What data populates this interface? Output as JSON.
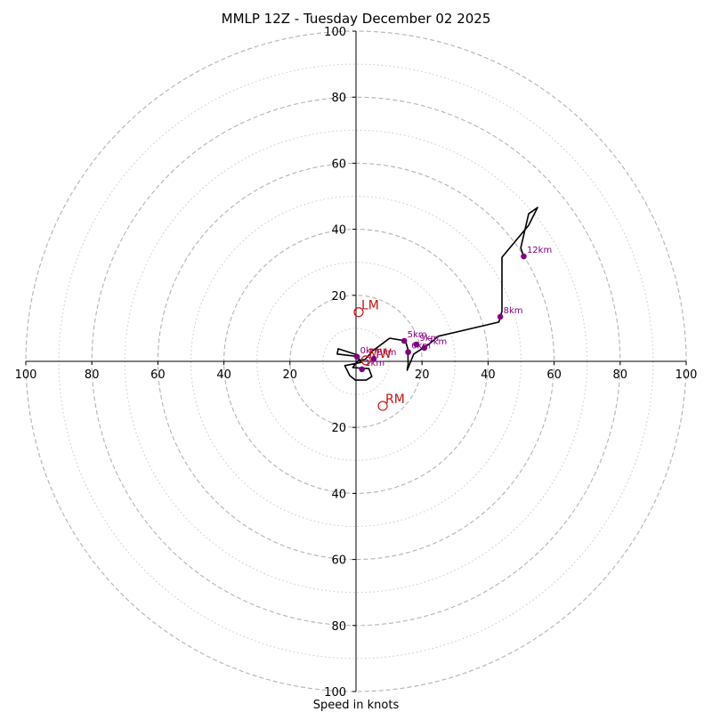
{
  "chart_data": {
    "type": "hodograph",
    "title": "MMLP 12Z - Tuesday December 02 2025",
    "xlabel": "Speed in knots",
    "max_speed": 100,
    "ring_speeds_major": [
      20,
      40,
      60,
      80,
      100
    ],
    "ring_speeds_minor": [
      10,
      30,
      50,
      70,
      90
    ],
    "horizontal_tick_labels": [
      "100",
      "80",
      "60",
      "40",
      "20",
      "20",
      "40",
      "60",
      "80",
      "100"
    ],
    "horizontal_tick_values": [
      -100,
      -80,
      -60,
      -40,
      -20,
      20,
      40,
      60,
      80,
      100
    ],
    "vertical_tick_labels": [
      "100",
      "80",
      "60",
      "40",
      "20",
      "20",
      "40",
      "60",
      "80",
      "100"
    ],
    "vertical_tick_values": [
      100,
      80,
      60,
      40,
      20,
      -20,
      -40,
      -60,
      -80,
      -100
    ],
    "hodograph_trace": [
      [
        0.6,
        1.9
      ],
      [
        -5.4,
        3.8
      ],
      [
        -5.7,
        2.2
      ],
      [
        0.3,
        1.5
      ],
      [
        1.7,
        -0.3
      ],
      [
        -3.4,
        -1.3
      ],
      [
        -1.9,
        -4.3
      ],
      [
        -0.2,
        -5.7
      ],
      [
        3.1,
        -5.7
      ],
      [
        4.8,
        -4.6
      ],
      [
        3.9,
        -2.2
      ],
      [
        -1.0,
        -1.9
      ],
      [
        0.7,
        0.3
      ],
      [
        2.7,
        0.5
      ],
      [
        5.1,
        3.2
      ],
      [
        10.2,
        7.0
      ],
      [
        15.0,
        6.2
      ],
      [
        15.7,
        3.8
      ],
      [
        15.8,
        -0.8
      ],
      [
        15.5,
        -2.7
      ],
      [
        17.5,
        2.2
      ],
      [
        22.0,
        5.1
      ],
      [
        24.9,
        7.6
      ],
      [
        43.3,
        11.9
      ],
      [
        44.2,
        15.2
      ],
      [
        44.2,
        31.5
      ],
      [
        52.3,
        41.2
      ],
      [
        55.0,
        46.6
      ],
      [
        52.3,
        44.7
      ],
      [
        49.9,
        34.3
      ],
      [
        50.8,
        31.8
      ]
    ],
    "height_markers": [
      {
        "label": "0km",
        "u": 0.3,
        "v": 1.4
      },
      {
        "label": "1km",
        "u": 1.8,
        "v": -2.4
      },
      {
        "label": "3km",
        "u": 5.4,
        "v": 0.8
      },
      {
        "label": "5km",
        "u": 14.6,
        "v": 6.2
      },
      {
        "label": "6km",
        "u": 15.8,
        "v": 2.8
      },
      {
        "label": "7km",
        "u": 20.7,
        "v": 4.1
      },
      {
        "label": "8km",
        "u": 43.7,
        "v": 13.5
      },
      {
        "label": "9km",
        "u": 18.3,
        "v": 5.1
      },
      {
        "label": "12km",
        "u": 50.8,
        "v": 31.8
      }
    ],
    "storm_motions": [
      {
        "label": "LM",
        "u": 0.8,
        "v": 14.9
      },
      {
        "label": "RM",
        "u": 8.1,
        "v": -13.5
      },
      {
        "label": "MW",
        "u": 3.0,
        "v": 0.3
      }
    ],
    "colors": {
      "trace": "#000000",
      "markers": "#800080",
      "storm_motion": "#cc1111",
      "major_ring": "#b3b3b3",
      "minor_ring": "#c8c8c8",
      "axis": "#000000"
    }
  }
}
